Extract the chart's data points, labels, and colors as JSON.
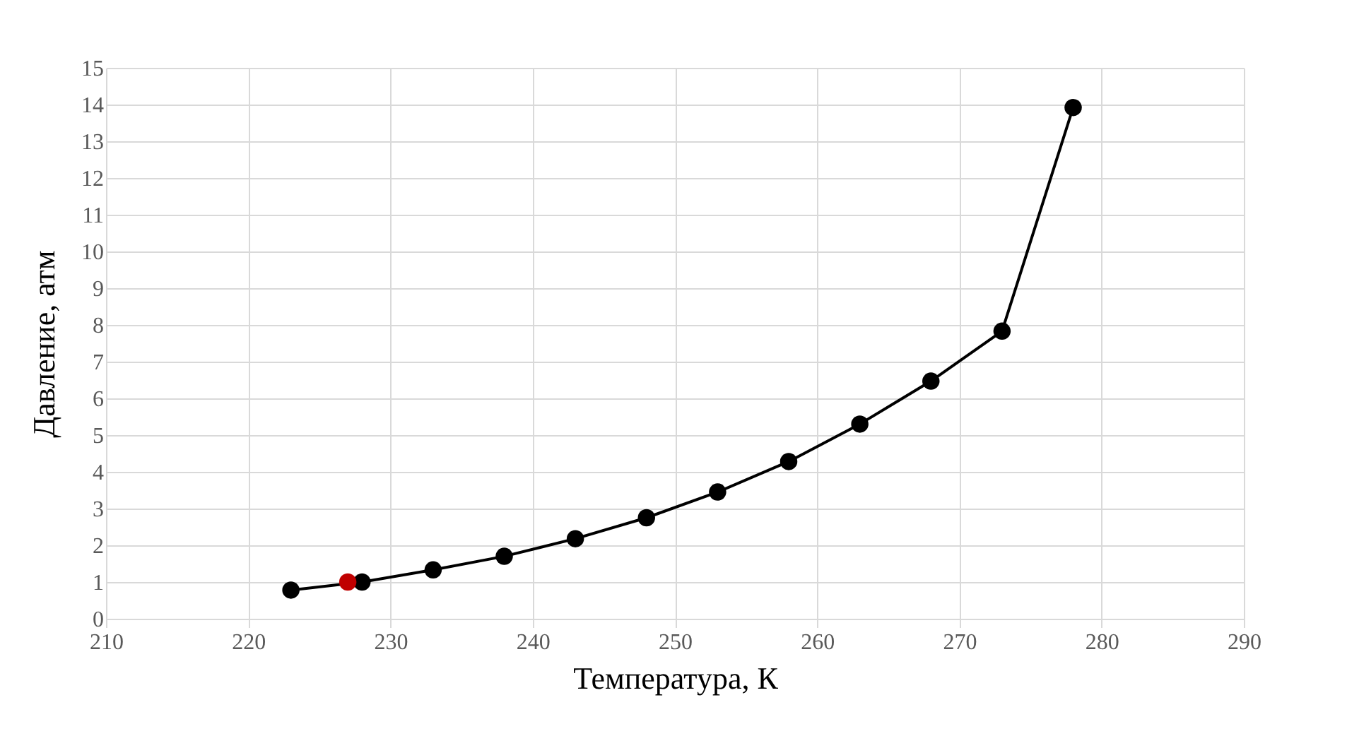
{
  "chart_data": {
    "type": "line",
    "xlabel": "Температура, К",
    "ylabel": "Давление, атм",
    "xlim": [
      210,
      290
    ],
    "xticks": [
      210,
      220,
      230,
      240,
      250,
      260,
      270,
      280,
      290
    ],
    "ylim": [
      0,
      15
    ],
    "yticks": [
      0,
      1,
      2,
      3,
      4,
      5,
      6,
      7,
      8,
      9,
      10,
      11,
      12,
      13,
      14,
      15
    ],
    "grid": true,
    "legend": false,
    "marker": "circle",
    "line_style": "solid",
    "series": [
      {
        "type": "line",
        "color": "#000000",
        "x": [
          223,
          228,
          233,
          238,
          243,
          248,
          253,
          258,
          263,
          268,
          273,
          278
        ],
        "values": [
          0.78,
          1.0,
          1.33,
          1.7,
          2.18,
          2.75,
          3.45,
          4.28,
          5.3,
          6.47,
          7.83,
          13.92
        ]
      },
      {
        "type": "scatter",
        "color": "#c00000",
        "x": [
          227
        ],
        "values": [
          1.0
        ]
      }
    ]
  }
}
